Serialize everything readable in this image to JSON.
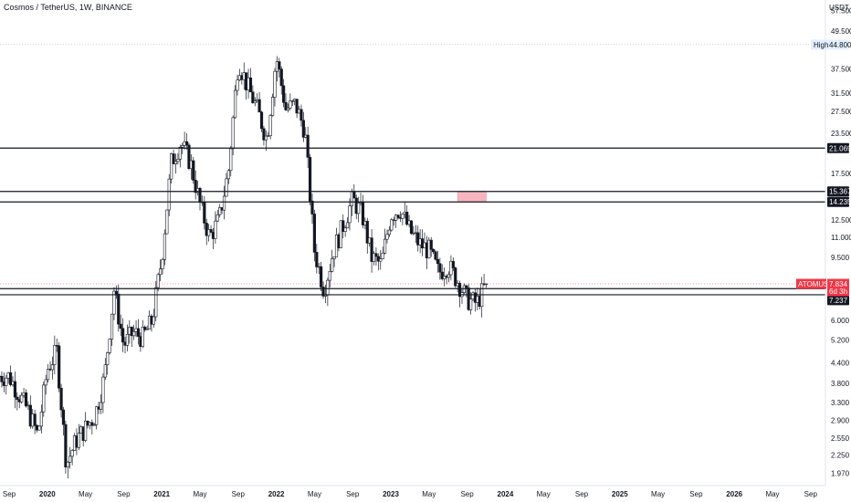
{
  "header": {
    "title": "Cosmos / TetherUS, 1W, BINANCE"
  },
  "y_axis": {
    "unit": "USDT",
    "ticks": [
      "57.500",
      "49.500",
      "44.800",
      "37.500",
      "31.500",
      "27.500",
      "23.500",
      "21.069",
      "17.500",
      "15.367",
      "14.235",
      "12.500",
      "11.000",
      "9.500",
      "7.834",
      "7.565",
      "7.237",
      "6.000",
      "5.200",
      "4.400",
      "3.800",
      "3.300",
      "2.900",
      "2.550",
      "2.250",
      "1.970"
    ]
  },
  "x_axis": {
    "labels": [
      {
        "text": "Sep",
        "bold": false
      },
      {
        "text": "2020",
        "bold": true
      },
      {
        "text": "May",
        "bold": false
      },
      {
        "text": "Sep",
        "bold": false
      },
      {
        "text": "2021",
        "bold": true
      },
      {
        "text": "May",
        "bold": false
      },
      {
        "text": "Sep",
        "bold": false
      },
      {
        "text": "2022",
        "bold": true
      },
      {
        "text": "May",
        "bold": false
      },
      {
        "text": "Sep",
        "bold": false
      },
      {
        "text": "2023",
        "bold": true
      },
      {
        "text": "May",
        "bold": false
      },
      {
        "text": "Sep",
        "bold": false
      },
      {
        "text": "2024",
        "bold": true
      },
      {
        "text": "May",
        "bold": false
      },
      {
        "text": "Sep",
        "bold": false
      },
      {
        "text": "2025",
        "bold": true
      },
      {
        "text": "May",
        "bold": false
      },
      {
        "text": "Sep",
        "bold": false
      },
      {
        "text": "2026",
        "bold": true
      },
      {
        "text": "May",
        "bold": false
      },
      {
        "text": "Sep",
        "bold": false
      }
    ]
  },
  "tags": {
    "high": {
      "label": "High",
      "value": "44.800"
    },
    "last": {
      "label": "ATOMUSDT",
      "value": "7.834",
      "countdown": "6d 3h",
      "color": "#f23645"
    },
    "levels": [
      "21.069",
      "15.367",
      "14.235",
      "7.565",
      "7.237"
    ]
  },
  "chart_data": {
    "type": "candlestick",
    "title": "Cosmos / TetherUS, 1W, BINANCE",
    "yunit": "USDT",
    "yscale": "log",
    "ylim": [
      1.85,
      62
    ],
    "horizontal_levels": [
      21.069,
      15.367,
      14.235,
      7.565,
      7.237
    ],
    "high": 44.8,
    "last_price": 7.834,
    "highlight_zone": {
      "y_low": 14.235,
      "y_high": 15.367,
      "x_start": "Aug 2023",
      "x_end": "Nov 2023",
      "color": "#f7b6bf"
    },
    "time_labels": [
      "Sep",
      "2020",
      "May",
      "Sep",
      "2021",
      "May",
      "Sep",
      "2022",
      "May",
      "Sep",
      "2023",
      "May",
      "Sep",
      "2024",
      "May",
      "Sep",
      "2025",
      "May",
      "Sep",
      "2026",
      "May",
      "Sep"
    ],
    "close_path_approx": [
      {
        "t": "Sep 2019",
        "v": 4.0
      },
      {
        "t": "Nov 2019",
        "v": 3.1
      },
      {
        "t": "Dec 2019",
        "v": 2.6
      },
      {
        "t": "Jan 2020",
        "v": 4.2
      },
      {
        "t": "Feb 2020",
        "v": 4.8
      },
      {
        "t": "Mar 2020",
        "v": 2.1
      },
      {
        "t": "Apr 2020",
        "v": 2.5
      },
      {
        "t": "Jun 2020",
        "v": 3.0
      },
      {
        "t": "Jul 2020",
        "v": 4.0
      },
      {
        "t": "Aug 2020",
        "v": 7.5
      },
      {
        "t": "Sep 2020",
        "v": 5.0
      },
      {
        "t": "Oct 2020",
        "v": 5.5
      },
      {
        "t": "Nov 2020",
        "v": 5.3
      },
      {
        "t": "Dec 2020",
        "v": 6.0
      },
      {
        "t": "Jan 2021",
        "v": 9.5
      },
      {
        "t": "Feb 2021",
        "v": 19.0
      },
      {
        "t": "Mar 2021",
        "v": 22.0
      },
      {
        "t": "Apr 2021",
        "v": 19.0
      },
      {
        "t": "May 2021",
        "v": 14.0
      },
      {
        "t": "Jun 2021",
        "v": 11.0
      },
      {
        "t": "Jul 2021",
        "v": 12.5
      },
      {
        "t": "Aug 2021",
        "v": 18.0
      },
      {
        "t": "Sep 2021",
        "v": 40.0
      },
      {
        "t": "Oct 2021",
        "v": 33.0
      },
      {
        "t": "Nov 2021",
        "v": 28.0
      },
      {
        "t": "Dec 2021",
        "v": 22.5
      },
      {
        "t": "Jan 2022",
        "v": 41.0
      },
      {
        "t": "Feb 2022",
        "v": 28.0
      },
      {
        "t": "Mar 2022",
        "v": 29.0
      },
      {
        "t": "Apr 2022",
        "v": 24.0
      },
      {
        "t": "May 2022",
        "v": 10.0
      },
      {
        "t": "Jun 2022",
        "v": 7.5
      },
      {
        "t": "Jul 2022",
        "v": 10.0
      },
      {
        "t": "Aug 2022",
        "v": 12.0
      },
      {
        "t": "Sep 2022",
        "v": 14.5
      },
      {
        "t": "Oct 2022",
        "v": 13.0
      },
      {
        "t": "Nov 2022",
        "v": 9.5
      },
      {
        "t": "Dec 2022",
        "v": 9.0
      },
      {
        "t": "Jan 2023",
        "v": 13.0
      },
      {
        "t": "Feb 2023",
        "v": 13.5
      },
      {
        "t": "Mar 2023",
        "v": 11.5
      },
      {
        "t": "Apr 2023",
        "v": 10.5
      },
      {
        "t": "May 2023",
        "v": 10.0
      },
      {
        "t": "Jun 2023",
        "v": 8.5
      },
      {
        "t": "Jul 2023",
        "v": 9.0
      },
      {
        "t": "Aug 2023",
        "v": 8.0
      },
      {
        "t": "Sep 2023",
        "v": 7.0
      },
      {
        "t": "Oct 2023",
        "v": 6.8
      },
      {
        "t": "Nov 2023",
        "v": 7.834
      }
    ]
  }
}
